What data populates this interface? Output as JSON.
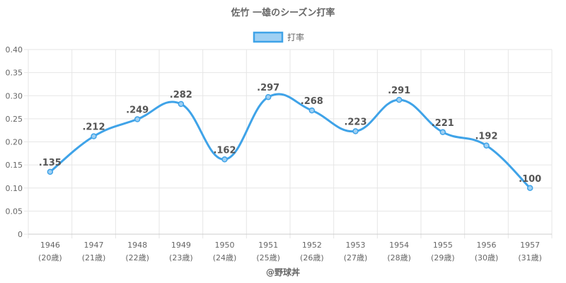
{
  "chart_data": {
    "type": "line",
    "title": "佐竹 一雄のシーズン打率",
    "legend": {
      "label": "打率",
      "position": "top"
    },
    "categories": [
      "1946",
      "1947",
      "1948",
      "1949",
      "1950",
      "1951",
      "1952",
      "1953",
      "1954",
      "1955",
      "1956",
      "1957"
    ],
    "age_labels": [
      "(20歳)",
      "(21歳)",
      "(22歳)",
      "(23歳)",
      "(24歳)",
      "(25歳)",
      "(26歳)",
      "(27歳)",
      "(28歳)",
      "(29歳)",
      "(30歳)",
      "(31歳)"
    ],
    "series": [
      {
        "name": "打率",
        "values": [
          0.135,
          0.212,
          0.249,
          0.282,
          0.162,
          0.297,
          0.268,
          0.223,
          0.291,
          0.221,
          0.192,
          0.1
        ],
        "data_labels": [
          ".135",
          ".212",
          ".249",
          ".282",
          ".162",
          ".297",
          ".268",
          ".223",
          ".291",
          ".221",
          ".192",
          ".100"
        ]
      }
    ],
    "y_ticks": [
      "0",
      "0.05",
      "0.10",
      "0.15",
      "0.20",
      "0.25",
      "0.30",
      "0.35",
      "0.40"
    ],
    "ylim": [
      0,
      0.4
    ],
    "grid": true,
    "colors": {
      "line": "#3fa3e8",
      "fill": "#9fd0f3",
      "grid": "#e6e6e6",
      "text": "#666666",
      "label": "#555555"
    }
  },
  "footer": {
    "credit": "@野球丼"
  }
}
